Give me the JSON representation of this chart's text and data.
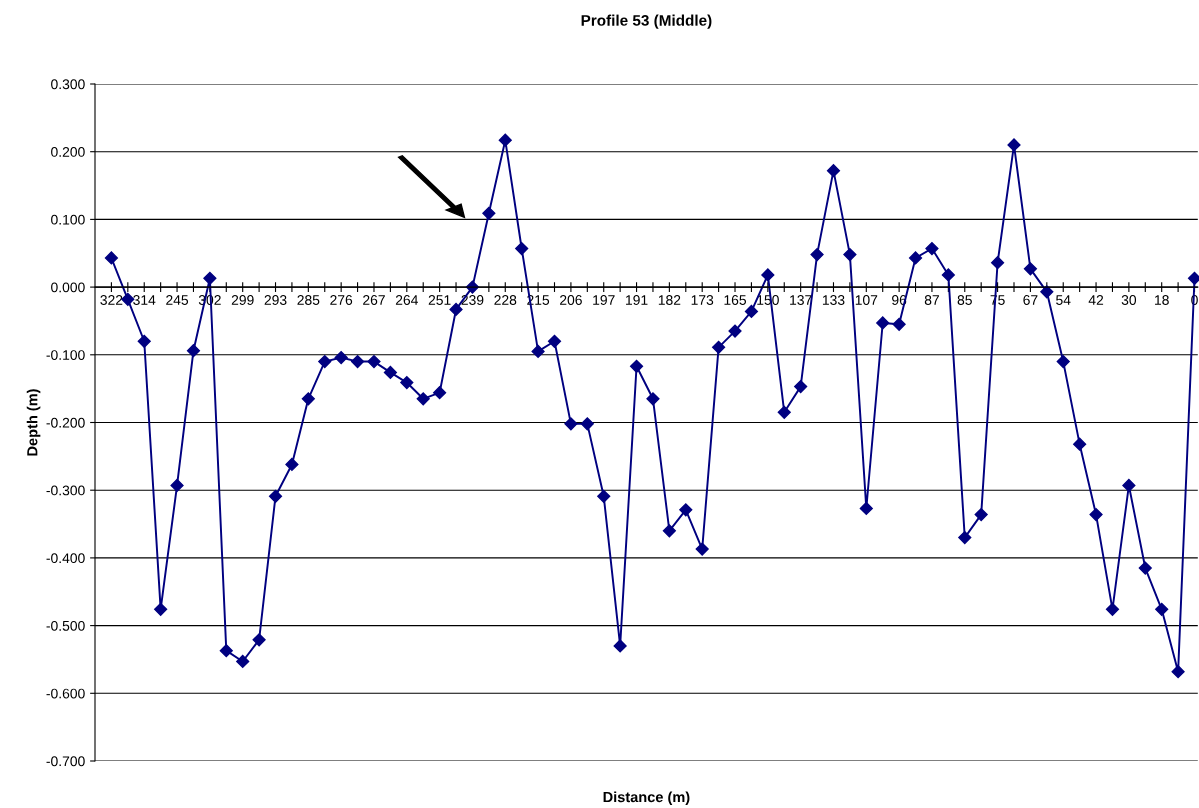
{
  "chart_data": {
    "type": "line",
    "title": "Profile 53 (Middle)",
    "xlabel": "Distance (m)",
    "ylabel": "Depth (m)",
    "categories": [
      "322",
      null,
      "314",
      null,
      "245",
      null,
      "302",
      null,
      "299",
      null,
      "293",
      null,
      "285",
      null,
      "276",
      null,
      "267",
      null,
      "264",
      null,
      "251",
      null,
      "239",
      null,
      "228",
      null,
      "215",
      null,
      "206",
      null,
      "197",
      null,
      "191",
      null,
      "182",
      null,
      "173",
      null,
      "165",
      null,
      "150",
      null,
      "137",
      null,
      "133",
      null,
      "107",
      null,
      "96",
      null,
      "87",
      null,
      "85",
      null,
      "75",
      null,
      "67",
      null,
      "54",
      null,
      "42",
      null,
      "30",
      null,
      "18",
      null,
      "0"
    ],
    "series": [
      {
        "color": "#000080",
        "values": [
          0.043,
          -0.018,
          -0.08,
          -0.476,
          -0.293,
          -0.094,
          0.013,
          -0.537,
          -0.553,
          -0.521,
          -0.309,
          -0.262,
          -0.165,
          -0.11,
          -0.104,
          -0.11,
          -0.11,
          -0.126,
          -0.141,
          -0.165,
          -0.156,
          -0.033,
          0.0,
          0.109,
          0.217,
          0.057,
          -0.095,
          -0.08,
          -0.202,
          -0.202,
          -0.309,
          -0.53,
          -0.117,
          -0.165,
          -0.36,
          -0.329,
          -0.387,
          -0.089,
          -0.065,
          -0.036,
          0.018,
          -0.185,
          -0.147,
          0.048,
          0.172,
          0.048,
          -0.327,
          -0.053,
          -0.055,
          0.043,
          0.057,
          0.018,
          -0.37,
          -0.336,
          0.036,
          0.21,
          0.027,
          -0.007,
          -0.11,
          -0.232,
          -0.336,
          -0.476,
          -0.293,
          -0.415,
          -0.476,
          -0.568,
          0.013
        ]
      }
    ],
    "ylim": [
      -0.7,
      0.3
    ],
    "yticks": [
      {
        "value": -0.7,
        "label": "-0.700"
      },
      {
        "value": -0.6,
        "label": "-0.600"
      },
      {
        "value": -0.5,
        "label": "-0.500"
      },
      {
        "value": -0.4,
        "label": "-0.400"
      },
      {
        "value": -0.3,
        "label": "-0.300"
      },
      {
        "value": -0.2,
        "label": "-0.200"
      },
      {
        "value": -0.1,
        "label": "-0.100"
      },
      {
        "value": 0,
        "label": "0.000"
      },
      {
        "value": 0.1,
        "label": "0.100"
      },
      {
        "value": 0.2,
        "label": "0.200"
      },
      {
        "value": 0.3,
        "label": "0.300"
      }
    ],
    "grid": "y",
    "marker": "diamond",
    "line_style": "solid",
    "legend": false
  }
}
